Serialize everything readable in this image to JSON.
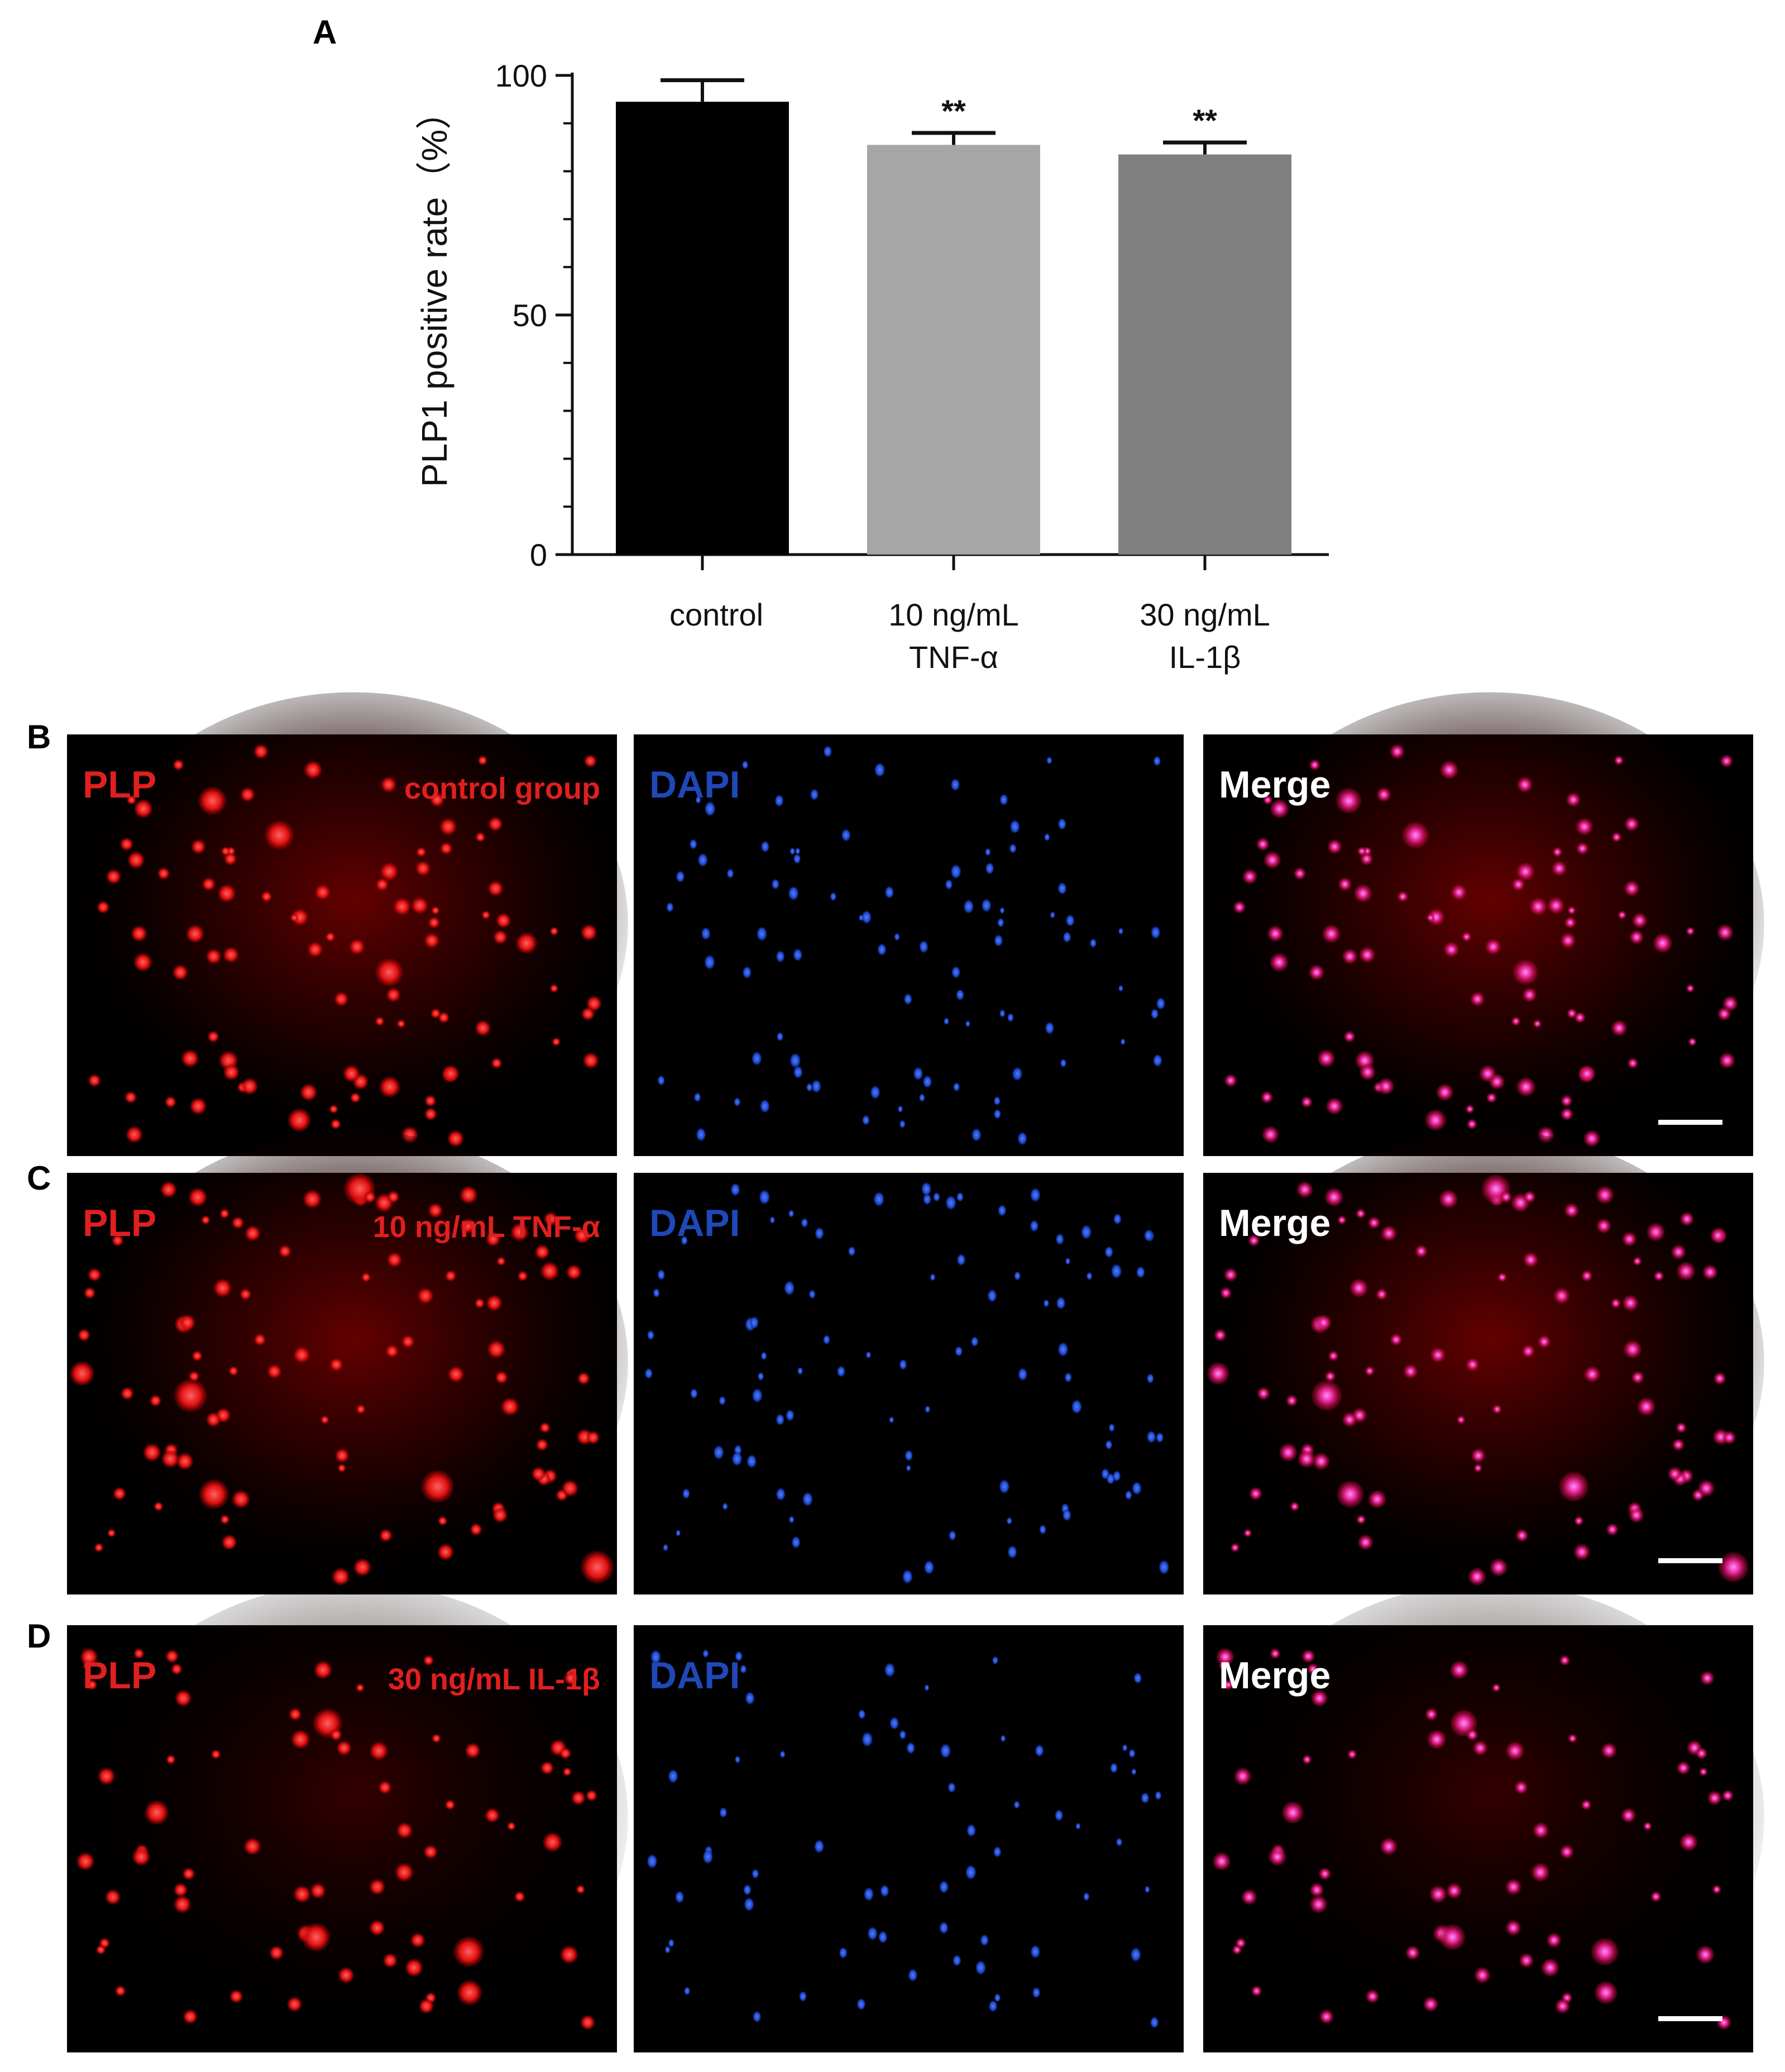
{
  "chart_data": {
    "type": "bar",
    "panel_label": "A",
    "categories": [
      [
        "control"
      ],
      [
        "10 ng/mL",
        "TNF-α"
      ],
      [
        "30 ng/mL",
        "IL-1β"
      ]
    ],
    "values": [
      94.5,
      85.5,
      83.5
    ],
    "errors": [
      4.5,
      2.5,
      2.5
    ],
    "significance": [
      "",
      "**",
      "**"
    ],
    "bar_colors": [
      "#000000",
      "#a6a6a6",
      "#808080"
    ],
    "ylabel": "PLP1 positive rate（%）",
    "ylim": [
      0,
      100
    ],
    "yticks": [
      0,
      50,
      100
    ],
    "minor_tick_step": 10,
    "grid": false
  },
  "micrographs": {
    "rows": [
      {
        "panel_label": "B",
        "condition": "control group",
        "scale_bar": true
      },
      {
        "panel_label": "C",
        "condition": "10 ng/mL TNF-α",
        "scale_bar": true
      },
      {
        "panel_label": "D",
        "condition": "30 ng/mL IL-1β",
        "scale_bar": true
      }
    ],
    "channels": [
      {
        "label": "PLP",
        "color": "#e01f1f"
      },
      {
        "label": "DAPI",
        "color": "#1f48b8"
      },
      {
        "label": "Merge",
        "color": "#ffffff"
      }
    ]
  }
}
